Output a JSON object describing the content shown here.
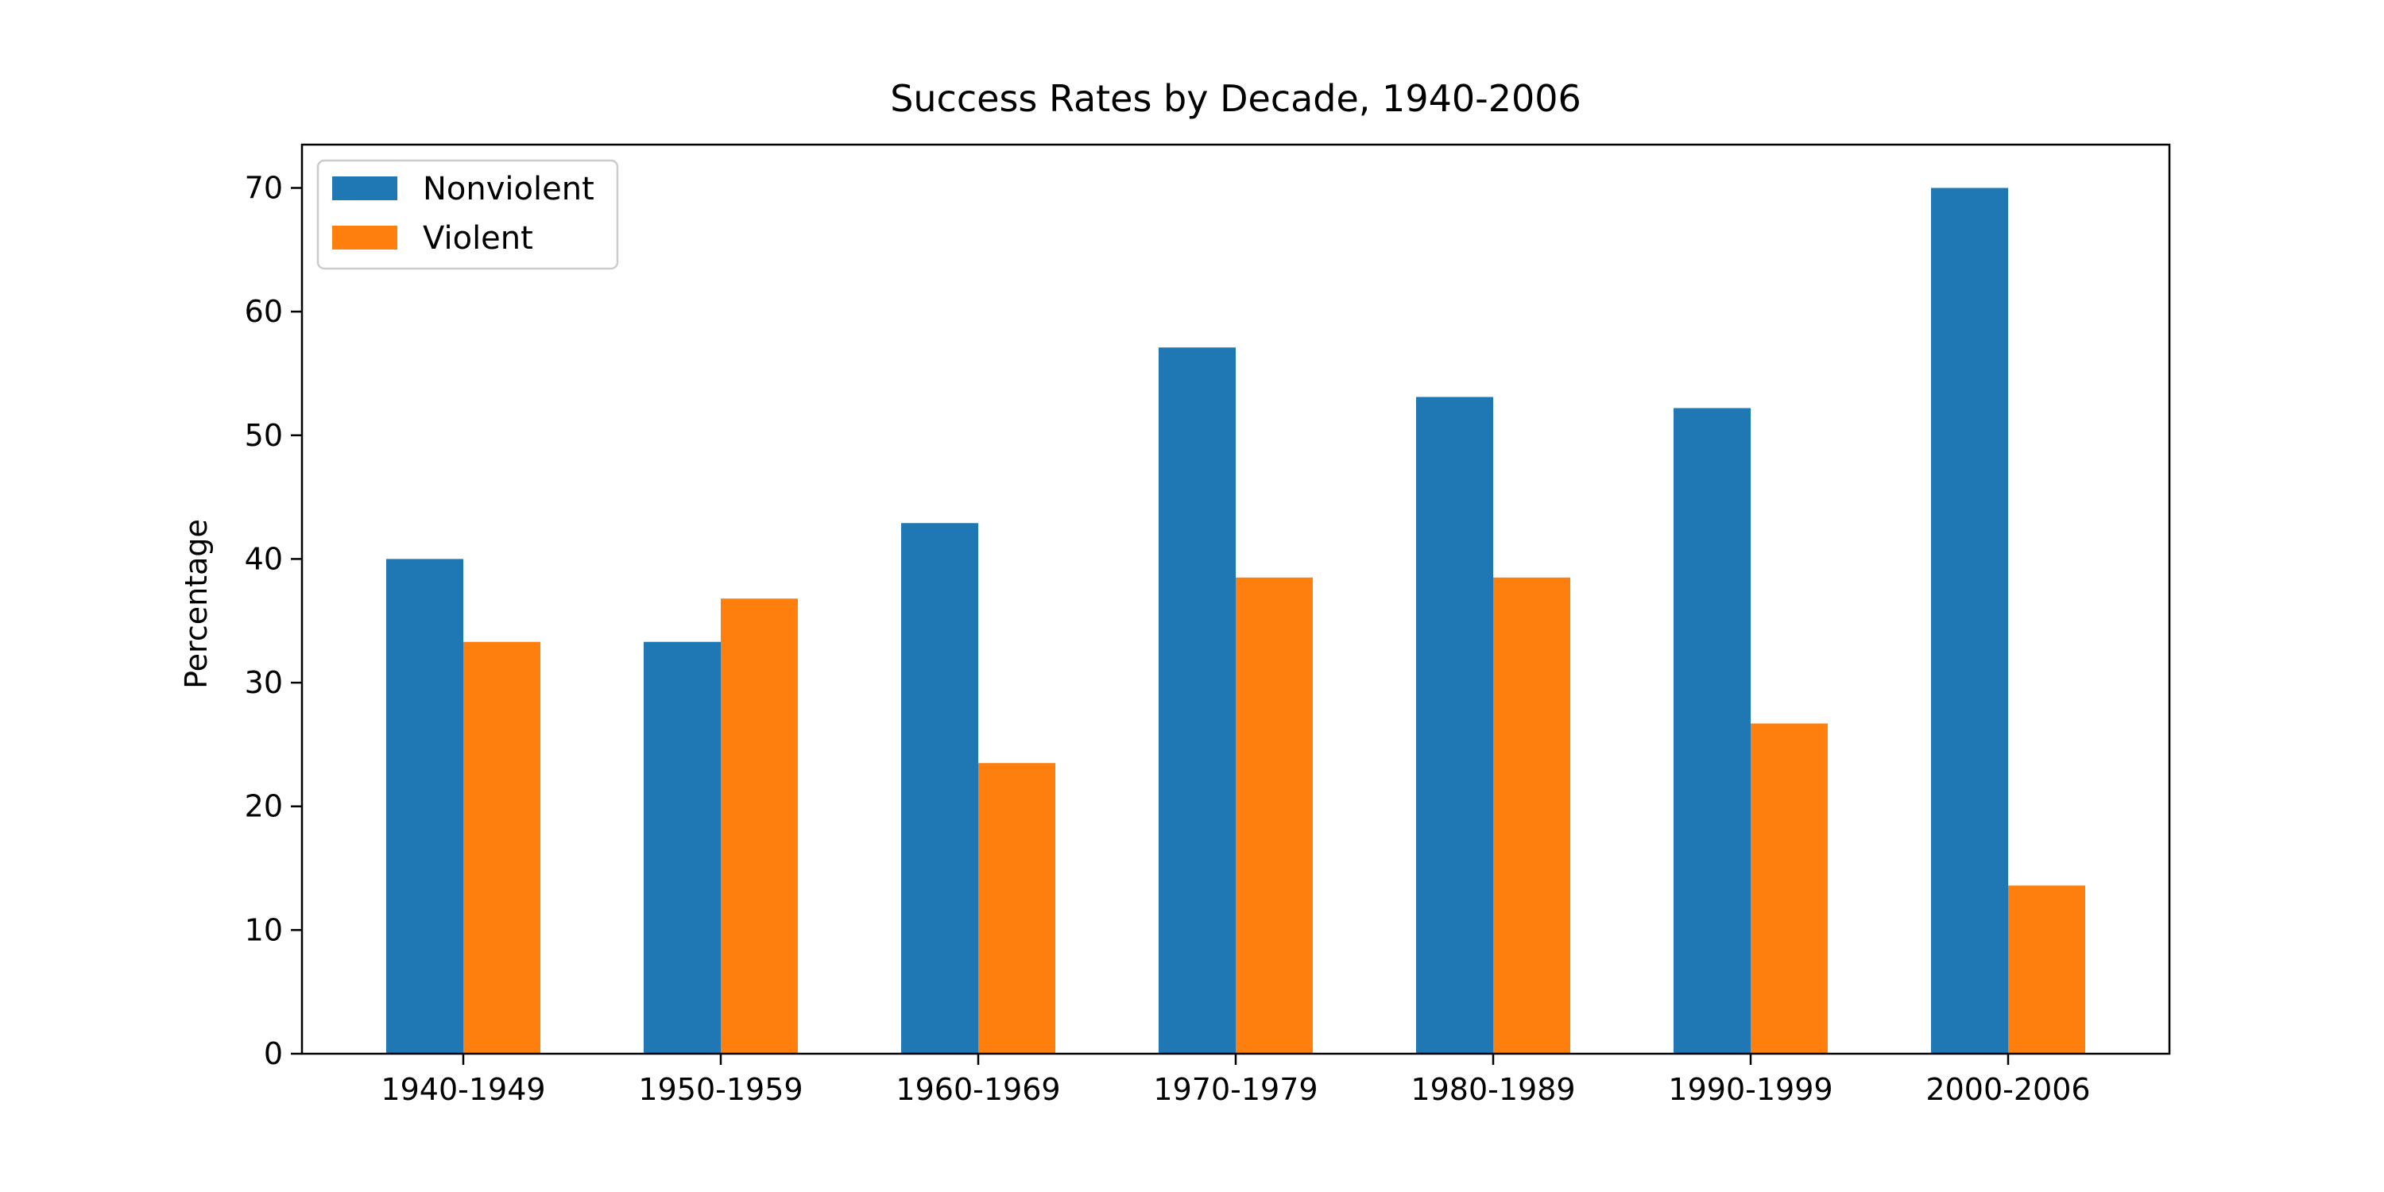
{
  "chart_data": {
    "type": "bar",
    "title": "Success Rates by Decade, 1940-2006",
    "xlabel": "",
    "ylabel": "Percentage",
    "categories": [
      "1940-1949",
      "1950-1959",
      "1960-1969",
      "1970-1979",
      "1980-1989",
      "1990-1999",
      "2000-2006"
    ],
    "series": [
      {
        "name": "Nonviolent",
        "color": "#1f77b4",
        "values": [
          40,
          33.3,
          42.9,
          57.1,
          53.1,
          52.2,
          70
        ]
      },
      {
        "name": "Violent",
        "color": "#ff7f0e",
        "values": [
          33.3,
          36.8,
          23.5,
          38.5,
          38.5,
          26.7,
          13.6
        ]
      }
    ],
    "ylim": [
      0,
      73.5
    ],
    "yticks": [
      0,
      10,
      20,
      30,
      40,
      50,
      60,
      70
    ],
    "grid": false,
    "legend": "top-left"
  }
}
